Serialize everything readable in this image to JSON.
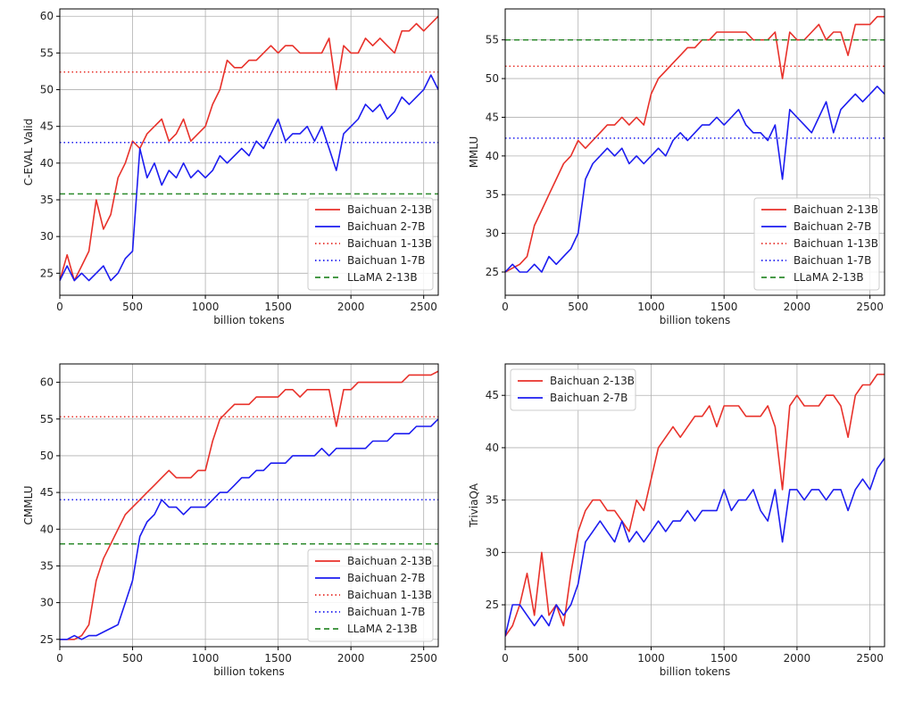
{
  "chart_data": [
    {
      "type": "line",
      "xlabel": "billion tokens",
      "ylabel": "C-EVAL Valid",
      "xlim": [
        0,
        2600
      ],
      "ylim": [
        22,
        61
      ],
      "xticks": [
        0,
        500,
        1000,
        1500,
        2000,
        2500
      ],
      "yticks": [
        25,
        30,
        35,
        40,
        45,
        50,
        55,
        60
      ],
      "grid": true,
      "legend_position": "lower-right",
      "series": [
        {
          "name": "Baichuan 2-13B",
          "color": "#e8312a",
          "style": "solid",
          "x": [
            0,
            50,
            100,
            150,
            200,
            250,
            300,
            350,
            400,
            450,
            500,
            550,
            600,
            650,
            700,
            750,
            800,
            850,
            900,
            950,
            1000,
            1050,
            1100,
            1150,
            1200,
            1250,
            1300,
            1350,
            1400,
            1450,
            1500,
            1550,
            1600,
            1650,
            1700,
            1750,
            1800,
            1850,
            1900,
            1950,
            2000,
            2050,
            2100,
            2150,
            2200,
            2250,
            2300,
            2350,
            2400,
            2450,
            2500,
            2550,
            2600
          ],
          "y": [
            24,
            27.5,
            24,
            26,
            28,
            35,
            31,
            33,
            38,
            40,
            43,
            42,
            44,
            45,
            46,
            43,
            44,
            46,
            43,
            44,
            45,
            48,
            50,
            54,
            53,
            53,
            54,
            54,
            55,
            56,
            55,
            56,
            56,
            55,
            55,
            55,
            55,
            57,
            50,
            56,
            55,
            55,
            57,
            56,
            57,
            56,
            55,
            58,
            58,
            59,
            58,
            59,
            60
          ]
        },
        {
          "name": "Baichuan 2-7B",
          "color": "#1c1cf0",
          "style": "solid",
          "x": [
            0,
            50,
            100,
            150,
            200,
            250,
            300,
            350,
            400,
            450,
            500,
            550,
            600,
            650,
            700,
            750,
            800,
            850,
            900,
            950,
            1000,
            1050,
            1100,
            1150,
            1200,
            1250,
            1300,
            1350,
            1400,
            1450,
            1500,
            1550,
            1600,
            1650,
            1700,
            1750,
            1800,
            1850,
            1900,
            1950,
            2000,
            2050,
            2100,
            2150,
            2200,
            2250,
            2300,
            2350,
            2400,
            2450,
            2500,
            2550,
            2600
          ],
          "y": [
            24,
            26,
            24,
            25,
            24,
            25,
            26,
            24,
            25,
            27,
            28,
            42,
            38,
            40,
            37,
            39,
            38,
            40,
            38,
            39,
            38,
            39,
            41,
            40,
            41,
            42,
            41,
            43,
            42,
            44,
            46,
            43,
            44,
            44,
            45,
            43,
            45,
            42,
            39,
            44,
            45,
            46,
            48,
            47,
            48,
            46,
            47,
            49,
            48,
            49,
            50,
            52,
            50
          ]
        },
        {
          "name": "Baichuan 1-13B",
          "color": "#e8312a",
          "style": "dotted",
          "x": [
            0,
            2600
          ],
          "y": [
            52.4,
            52.4
          ]
        },
        {
          "name": "Baichuan 1-7B",
          "color": "#1c1cf0",
          "style": "dotted",
          "x": [
            0,
            2600
          ],
          "y": [
            42.8,
            42.8
          ]
        },
        {
          "name": "LLaMA 2-13B",
          "color": "#2e8b2e",
          "style": "dashed",
          "x": [
            0,
            2600
          ],
          "y": [
            35.8,
            35.8
          ]
        }
      ]
    },
    {
      "type": "line",
      "xlabel": "billion tokens",
      "ylabel": "MMLU",
      "xlim": [
        0,
        2600
      ],
      "ylim": [
        22,
        59
      ],
      "xticks": [
        0,
        500,
        1000,
        1500,
        2000,
        2500
      ],
      "yticks": [
        25,
        30,
        35,
        40,
        45,
        50,
        55
      ],
      "grid": true,
      "legend_position": "lower-right",
      "series": [
        {
          "name": "Baichuan 2-13B",
          "color": "#e8312a",
          "style": "solid",
          "x": [
            0,
            50,
            100,
            150,
            200,
            250,
            300,
            350,
            400,
            450,
            500,
            550,
            600,
            650,
            700,
            750,
            800,
            850,
            900,
            950,
            1000,
            1050,
            1100,
            1150,
            1200,
            1250,
            1300,
            1350,
            1400,
            1450,
            1500,
            1550,
            1600,
            1650,
            1700,
            1750,
            1800,
            1850,
            1900,
            1950,
            2000,
            2050,
            2100,
            2150,
            2200,
            2250,
            2300,
            2350,
            2400,
            2450,
            2500,
            2550,
            2600
          ],
          "y": [
            25,
            25.5,
            26,
            27,
            31,
            33,
            35,
            37,
            39,
            40,
            42,
            41,
            42,
            43,
            44,
            44,
            45,
            44,
            45,
            44,
            48,
            50,
            51,
            52,
            53,
            54,
            54,
            55,
            55,
            56,
            56,
            56,
            56,
            56,
            55,
            55,
            55,
            56,
            50,
            56,
            55,
            55,
            56,
            57,
            55,
            56,
            56,
            53,
            57,
            57,
            57,
            58,
            58
          ]
        },
        {
          "name": "Baichuan 2-7B",
          "color": "#1c1cf0",
          "style": "solid",
          "x": [
            0,
            50,
            100,
            150,
            200,
            250,
            300,
            350,
            400,
            450,
            500,
            550,
            600,
            650,
            700,
            750,
            800,
            850,
            900,
            950,
            1000,
            1050,
            1100,
            1150,
            1200,
            1250,
            1300,
            1350,
            1400,
            1450,
            1500,
            1550,
            1600,
            1650,
            1700,
            1750,
            1800,
            1850,
            1900,
            1950,
            2000,
            2050,
            2100,
            2150,
            2200,
            2250,
            2300,
            2350,
            2400,
            2450,
            2500,
            2550,
            2600
          ],
          "y": [
            25,
            26,
            25,
            25,
            26,
            25,
            27,
            26,
            27,
            28,
            30,
            37,
            39,
            40,
            41,
            40,
            41,
            39,
            40,
            39,
            40,
            41,
            40,
            42,
            43,
            42,
            43,
            44,
            44,
            45,
            44,
            45,
            46,
            44,
            43,
            43,
            42,
            44,
            37,
            46,
            45,
            44,
            43,
            45,
            47,
            43,
            46,
            47,
            48,
            47,
            48,
            49,
            48
          ]
        },
        {
          "name": "Baichuan 1-13B",
          "color": "#e8312a",
          "style": "dotted",
          "x": [
            0,
            2600
          ],
          "y": [
            51.6,
            51.6
          ]
        },
        {
          "name": "Baichuan 1-7B",
          "color": "#1c1cf0",
          "style": "dotted",
          "x": [
            0,
            2600
          ],
          "y": [
            42.3,
            42.3
          ]
        },
        {
          "name": "LLaMA 2-13B",
          "color": "#2e8b2e",
          "style": "dashed",
          "x": [
            0,
            2600
          ],
          "y": [
            55.0,
            55.0
          ]
        }
      ]
    },
    {
      "type": "line",
      "xlabel": "billion tokens",
      "ylabel": "CMMLU",
      "xlim": [
        0,
        2600
      ],
      "ylim": [
        24,
        62.5
      ],
      "xticks": [
        0,
        500,
        1000,
        1500,
        2000,
        2500
      ],
      "yticks": [
        25,
        30,
        35,
        40,
        45,
        50,
        55,
        60
      ],
      "grid": true,
      "legend_position": "lower-right",
      "series": [
        {
          "name": "Baichuan 2-13B",
          "color": "#e8312a",
          "style": "solid",
          "x": [
            0,
            50,
            100,
            150,
            200,
            250,
            300,
            350,
            400,
            450,
            500,
            550,
            600,
            650,
            700,
            750,
            800,
            850,
            900,
            950,
            1000,
            1050,
            1100,
            1150,
            1200,
            1250,
            1300,
            1350,
            1400,
            1450,
            1500,
            1550,
            1600,
            1650,
            1700,
            1750,
            1800,
            1850,
            1900,
            1950,
            2000,
            2050,
            2100,
            2150,
            2200,
            2250,
            2300,
            2350,
            2400,
            2450,
            2500,
            2550,
            2600
          ],
          "y": [
            25,
            25,
            25,
            25.5,
            27,
            33,
            36,
            38,
            40,
            42,
            43,
            44,
            45,
            46,
            47,
            48,
            47,
            47,
            47,
            48,
            48,
            52,
            55,
            56,
            57,
            57,
            57,
            58,
            58,
            58,
            58,
            59,
            59,
            58,
            59,
            59,
            59,
            59,
            54,
            59,
            59,
            60,
            60,
            60,
            60,
            60,
            60,
            60,
            61,
            61,
            61,
            61,
            61.5
          ]
        },
        {
          "name": "Baichuan 2-7B",
          "color": "#1c1cf0",
          "style": "solid",
          "x": [
            0,
            50,
            100,
            150,
            200,
            250,
            300,
            350,
            400,
            450,
            500,
            550,
            600,
            650,
            700,
            750,
            800,
            850,
            900,
            950,
            1000,
            1050,
            1100,
            1150,
            1200,
            1250,
            1300,
            1350,
            1400,
            1450,
            1500,
            1550,
            1600,
            1650,
            1700,
            1750,
            1800,
            1850,
            1900,
            1950,
            2000,
            2050,
            2100,
            2150,
            2200,
            2250,
            2300,
            2350,
            2400,
            2450,
            2500,
            2550,
            2600
          ],
          "y": [
            25,
            25,
            25.5,
            25,
            25.5,
            25.5,
            26,
            26.5,
            27,
            30,
            33,
            39,
            41,
            42,
            44,
            43,
            43,
            42,
            43,
            43,
            43,
            44,
            45,
            45,
            46,
            47,
            47,
            48,
            48,
            49,
            49,
            49,
            50,
            50,
            50,
            50,
            51,
            50,
            51,
            51,
            51,
            51,
            51,
            52,
            52,
            52,
            53,
            53,
            53,
            54,
            54,
            54,
            55
          ]
        },
        {
          "name": "Baichuan 1-13B",
          "color": "#e8312a",
          "style": "dotted",
          "x": [
            0,
            2600
          ],
          "y": [
            55.3,
            55.3
          ]
        },
        {
          "name": "Baichuan 1-7B",
          "color": "#1c1cf0",
          "style": "dotted",
          "x": [
            0,
            2600
          ],
          "y": [
            44.0,
            44.0
          ]
        },
        {
          "name": "LLaMA 2-13B",
          "color": "#2e8b2e",
          "style": "dashed",
          "x": [
            0,
            2600
          ],
          "y": [
            38.0,
            38.0
          ]
        }
      ]
    },
    {
      "type": "line",
      "xlabel": "billion tokens",
      "ylabel": "TriviaQA",
      "xlim": [
        0,
        2600
      ],
      "ylim": [
        21,
        48
      ],
      "xticks": [
        0,
        500,
        1000,
        1500,
        2000,
        2500
      ],
      "yticks": [
        25,
        30,
        35,
        40,
        45
      ],
      "grid": true,
      "legend_position": "top-left",
      "series": [
        {
          "name": "Baichuan 2-13B",
          "color": "#e8312a",
          "style": "solid",
          "x": [
            0,
            50,
            100,
            150,
            200,
            250,
            300,
            350,
            400,
            450,
            500,
            550,
            600,
            650,
            700,
            750,
            800,
            850,
            900,
            950,
            1000,
            1050,
            1100,
            1150,
            1200,
            1250,
            1300,
            1350,
            1400,
            1450,
            1500,
            1550,
            1600,
            1650,
            1700,
            1750,
            1800,
            1850,
            1900,
            1950,
            2000,
            2050,
            2100,
            2150,
            2200,
            2250,
            2300,
            2350,
            2400,
            2450,
            2500,
            2550,
            2600
          ],
          "y": [
            22,
            23,
            25,
            28,
            24,
            30,
            24,
            25,
            23,
            28,
            32,
            34,
            35,
            35,
            34,
            34,
            33,
            32,
            35,
            34,
            37,
            40,
            41,
            42,
            41,
            42,
            43,
            43,
            44,
            42,
            44,
            44,
            44,
            43,
            43,
            43,
            44,
            42,
            36,
            44,
            45,
            44,
            44,
            44,
            45,
            45,
            44,
            41,
            45,
            46,
            46,
            47,
            47
          ]
        },
        {
          "name": "Baichuan 2-7B",
          "color": "#1c1cf0",
          "style": "solid",
          "x": [
            0,
            50,
            100,
            150,
            200,
            250,
            300,
            350,
            400,
            450,
            500,
            550,
            600,
            650,
            700,
            750,
            800,
            850,
            900,
            950,
            1000,
            1050,
            1100,
            1150,
            1200,
            1250,
            1300,
            1350,
            1400,
            1450,
            1500,
            1550,
            1600,
            1650,
            1700,
            1750,
            1800,
            1850,
            1900,
            1950,
            2000,
            2050,
            2100,
            2150,
            2200,
            2250,
            2300,
            2350,
            2400,
            2450,
            2500,
            2550,
            2600
          ],
          "y": [
            22,
            25,
            25,
            24,
            23,
            24,
            23,
            25,
            24,
            25,
            27,
            31,
            32,
            33,
            32,
            31,
            33,
            31,
            32,
            31,
            32,
            33,
            32,
            33,
            33,
            34,
            33,
            34,
            34,
            34,
            36,
            34,
            35,
            35,
            36,
            34,
            33,
            36,
            31,
            36,
            36,
            35,
            36,
            36,
            35,
            36,
            36,
            34,
            36,
            37,
            36,
            38,
            39
          ]
        }
      ]
    }
  ]
}
